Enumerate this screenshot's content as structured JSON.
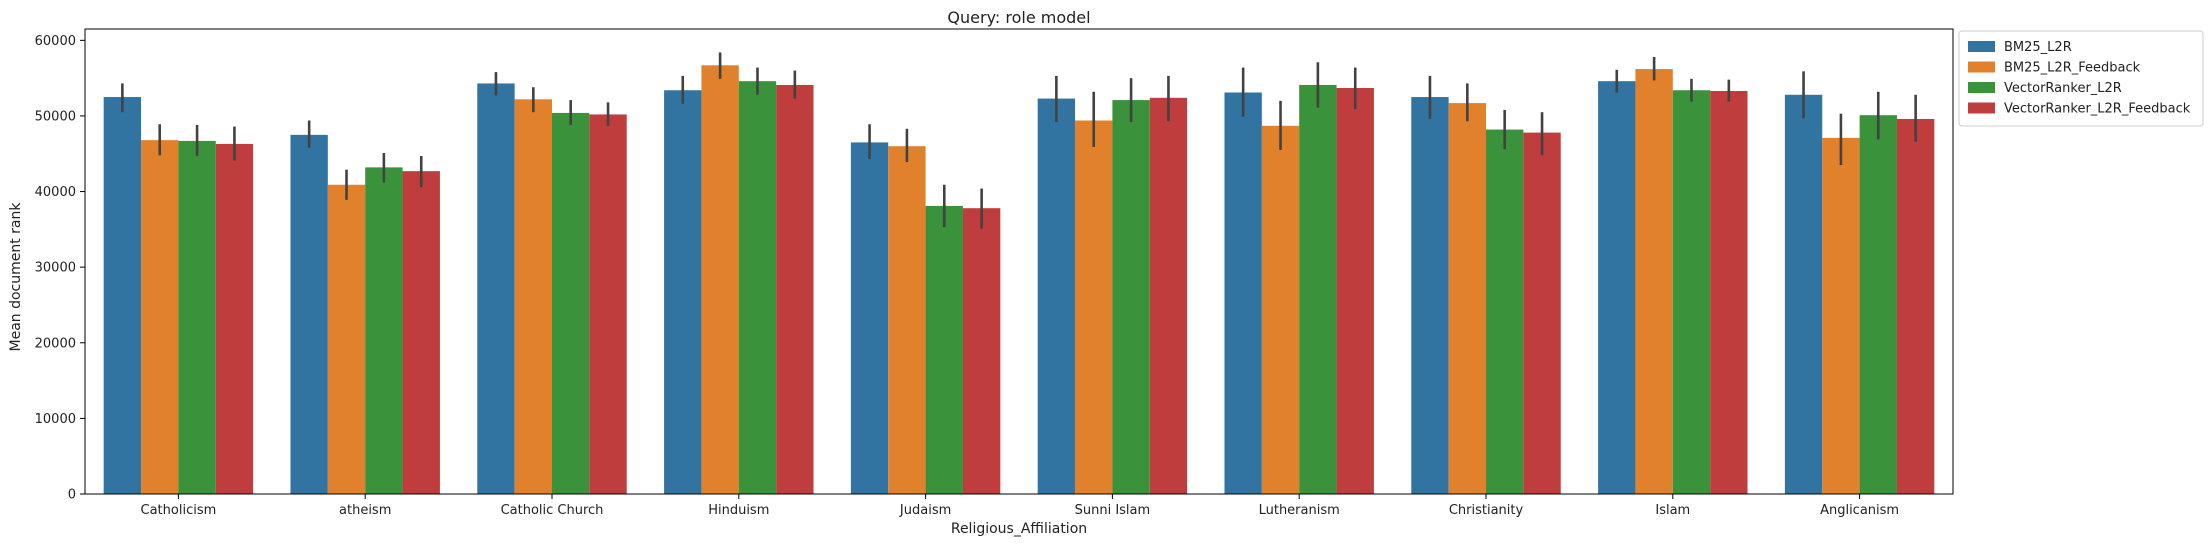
{
  "chart_data": {
    "type": "bar",
    "title": "Query: role model",
    "xlabel": "Religious_Affiliation",
    "ylabel": "Mean document rank",
    "ylim": [
      0,
      61500
    ],
    "yticks": [
      0,
      10000,
      20000,
      30000,
      40000,
      50000,
      60000
    ],
    "grid": false,
    "legend_position": "outside-top-right",
    "categories": [
      "Catholicism",
      "atheism",
      "Catholic Church",
      "Hinduism",
      "Judaism",
      "Sunni Islam",
      "Lutheranism",
      "Christianity",
      "Islam",
      "Anglicanism"
    ],
    "series": [
      {
        "name": "BM25_L2R",
        "color": "#3274a1",
        "values": [
          52500,
          47500,
          54300,
          53400,
          46500,
          52300,
          53100,
          52500,
          54600,
          52800
        ],
        "err_low": [
          50500,
          45800,
          52700,
          51600,
          44300,
          49200,
          49900,
          49600,
          53100,
          49700
        ],
        "err_high": [
          54300,
          49400,
          55800,
          55300,
          48900,
          55300,
          56400,
          55300,
          56100,
          55900
        ]
      },
      {
        "name": "BM25_L2R_Feedback",
        "color": "#e1812c",
        "values": [
          46800,
          40900,
          52200,
          56700,
          46000,
          49400,
          48700,
          51700,
          56200,
          47100
        ],
        "err_low": [
          44800,
          38900,
          50500,
          54900,
          43900,
          45900,
          45500,
          49300,
          54700,
          43500
        ],
        "err_high": [
          48900,
          42900,
          53800,
          58400,
          48300,
          53200,
          52000,
          54300,
          57800,
          50300
        ]
      },
      {
        "name": "VectorRanker_L2R",
        "color": "#3a923a",
        "values": [
          46700,
          43200,
          50400,
          54600,
          38100,
          52100,
          54100,
          48200,
          53400,
          50100
        ],
        "err_low": [
          44700,
          41200,
          48800,
          52800,
          35300,
          49200,
          51100,
          45600,
          51900,
          46900
        ],
        "err_high": [
          48800,
          45100,
          52100,
          56400,
          40900,
          55000,
          57100,
          50800,
          54900,
          53200
        ]
      },
      {
        "name": "VectorRanker_L2R_Feedback",
        "color": "#c03d3e",
        "values": [
          46300,
          42700,
          50200,
          54100,
          37800,
          52400,
          53700,
          47800,
          53300,
          49600
        ],
        "err_low": [
          44100,
          40600,
          48700,
          52300,
          35100,
          49300,
          50900,
          44800,
          51900,
          46600
        ],
        "err_high": [
          48600,
          44700,
          51800,
          56000,
          40400,
          55300,
          56400,
          50500,
          54800,
          52800
        ]
      }
    ]
  }
}
